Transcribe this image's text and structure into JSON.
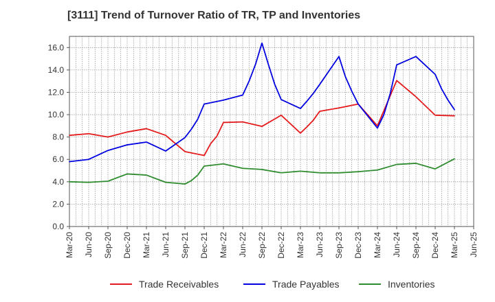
{
  "chart_data": {
    "type": "line",
    "title": "[3111]  Trend of Turnover Ratio of TR, TP and Inventories",
    "xlabel": "",
    "ylabel": "",
    "x": [
      "Mar-20",
      "Jun-20",
      "Sep-20",
      "Dec-20",
      "Mar-21",
      "Jun-21",
      "Sep-21",
      "Oct-21",
      "Nov-21",
      "Dec-21",
      "Jan-22",
      "Feb-22",
      "Mar-22",
      "Jun-22",
      "Jul-22",
      "Aug-22",
      "Sep-22",
      "Oct-22",
      "Nov-22",
      "Dec-22",
      "Mar-23",
      "Apr-23",
      "May-23",
      "Jun-23",
      "Sep-23",
      "Oct-23",
      "Nov-23",
      "Dec-23",
      "Mar-24",
      "Apr-24",
      "May-24",
      "Jun-24",
      "Sep-24",
      "Dec-24",
      "Jan-25",
      "Feb-25",
      "Mar-25"
    ],
    "x_ticks": [
      "Mar-20",
      "Jun-20",
      "Sep-20",
      "Dec-20",
      "Mar-21",
      "Jun-21",
      "Sep-21",
      "Dec-21",
      "Mar-22",
      "Jun-22",
      "Sep-22",
      "Dec-22",
      "Mar-23",
      "Jun-23",
      "Sep-23",
      "Dec-23",
      "Mar-24",
      "Jun-24",
      "Sep-24",
      "Dec-24",
      "Mar-25",
      "Jun-25"
    ],
    "ylim": [
      0,
      17
    ],
    "y_ticks": [
      "0.0",
      "2.0",
      "4.0",
      "6.0",
      "8.0",
      "10.0",
      "12.0",
      "14.0",
      "16.0"
    ],
    "grid": true,
    "legend_position": "bottom",
    "series": [
      {
        "name": "Trade Receivables",
        "color": "#e41a1c",
        "points": [
          [
            "Mar-20",
            8.15
          ],
          [
            "Jun-20",
            8.3
          ],
          [
            "Sep-20",
            8.0
          ],
          [
            "Dec-20",
            8.45
          ],
          [
            "Mar-21",
            8.75
          ],
          [
            "Jun-21",
            8.15
          ],
          [
            "Sep-21",
            6.7
          ],
          [
            "Dec-21",
            6.35
          ],
          [
            "Jan-22",
            7.4
          ],
          [
            "Feb-22",
            8.1
          ],
          [
            "Mar-22",
            9.3
          ],
          [
            "Jun-22",
            9.35
          ],
          [
            "Sep-22",
            8.95
          ],
          [
            "Dec-22",
            9.95
          ],
          [
            "Mar-23",
            8.35
          ],
          [
            "Apr-23",
            8.9
          ],
          [
            "May-23",
            9.5
          ],
          [
            "Jun-23",
            10.3
          ],
          [
            "Sep-23",
            10.6
          ],
          [
            "Dec-23",
            10.95
          ],
          [
            "Mar-24",
            9.0
          ],
          [
            "Jun-24",
            13.05
          ],
          [
            "Sep-24",
            11.6
          ],
          [
            "Dec-24",
            9.95
          ],
          [
            "Mar-25",
            9.9
          ]
        ]
      },
      {
        "name": "Trade Payables",
        "color": "#0000e0",
        "points": [
          [
            "Mar-20",
            5.8
          ],
          [
            "Jun-20",
            6.0
          ],
          [
            "Sep-20",
            6.8
          ],
          [
            "Dec-20",
            7.3
          ],
          [
            "Mar-21",
            7.55
          ],
          [
            "Jun-21",
            6.75
          ],
          [
            "Sep-21",
            7.95
          ],
          [
            "Oct-21",
            8.7
          ],
          [
            "Nov-21",
            9.6
          ],
          [
            "Dec-21",
            10.95
          ],
          [
            "Mar-22",
            11.3
          ],
          [
            "Jun-22",
            11.75
          ],
          [
            "Jul-22",
            13.0
          ],
          [
            "Aug-22",
            14.5
          ],
          [
            "Sep-22",
            16.4
          ],
          [
            "Oct-22",
            14.5
          ],
          [
            "Nov-22",
            12.7
          ],
          [
            "Dec-22",
            11.35
          ],
          [
            "Mar-23",
            10.55
          ],
          [
            "Apr-23",
            11.2
          ],
          [
            "May-23",
            11.9
          ],
          [
            "Jun-23",
            12.7
          ],
          [
            "Sep-23",
            15.2
          ],
          [
            "Oct-23",
            13.4
          ],
          [
            "Nov-23",
            12.1
          ],
          [
            "Dec-23",
            10.95
          ],
          [
            "Mar-24",
            8.8
          ],
          [
            "Apr-24",
            10.0
          ],
          [
            "May-24",
            11.9
          ],
          [
            "Jun-24",
            14.45
          ],
          [
            "Sep-24",
            15.2
          ],
          [
            "Dec-24",
            13.6
          ],
          [
            "Jan-25",
            12.3
          ],
          [
            "Feb-25",
            11.3
          ],
          [
            "Mar-25",
            10.45
          ]
        ]
      },
      {
        "name": "Inventories",
        "color": "#2e8b2e",
        "points": [
          [
            "Mar-20",
            4.0
          ],
          [
            "Jun-20",
            3.95
          ],
          [
            "Sep-20",
            4.05
          ],
          [
            "Dec-20",
            4.7
          ],
          [
            "Mar-21",
            4.6
          ],
          [
            "Jun-21",
            3.95
          ],
          [
            "Sep-21",
            3.8
          ],
          [
            "Oct-21",
            4.1
          ],
          [
            "Nov-21",
            4.6
          ],
          [
            "Dec-21",
            5.4
          ],
          [
            "Mar-22",
            5.6
          ],
          [
            "Jun-22",
            5.2
          ],
          [
            "Sep-22",
            5.1
          ],
          [
            "Dec-22",
            4.8
          ],
          [
            "Mar-23",
            4.95
          ],
          [
            "Jun-23",
            4.8
          ],
          [
            "Sep-23",
            4.8
          ],
          [
            "Dec-23",
            4.9
          ],
          [
            "Mar-24",
            5.05
          ],
          [
            "Jun-24",
            5.55
          ],
          [
            "Sep-24",
            5.65
          ],
          [
            "Dec-24",
            5.15
          ],
          [
            "Mar-25",
            6.05
          ]
        ]
      }
    ]
  }
}
